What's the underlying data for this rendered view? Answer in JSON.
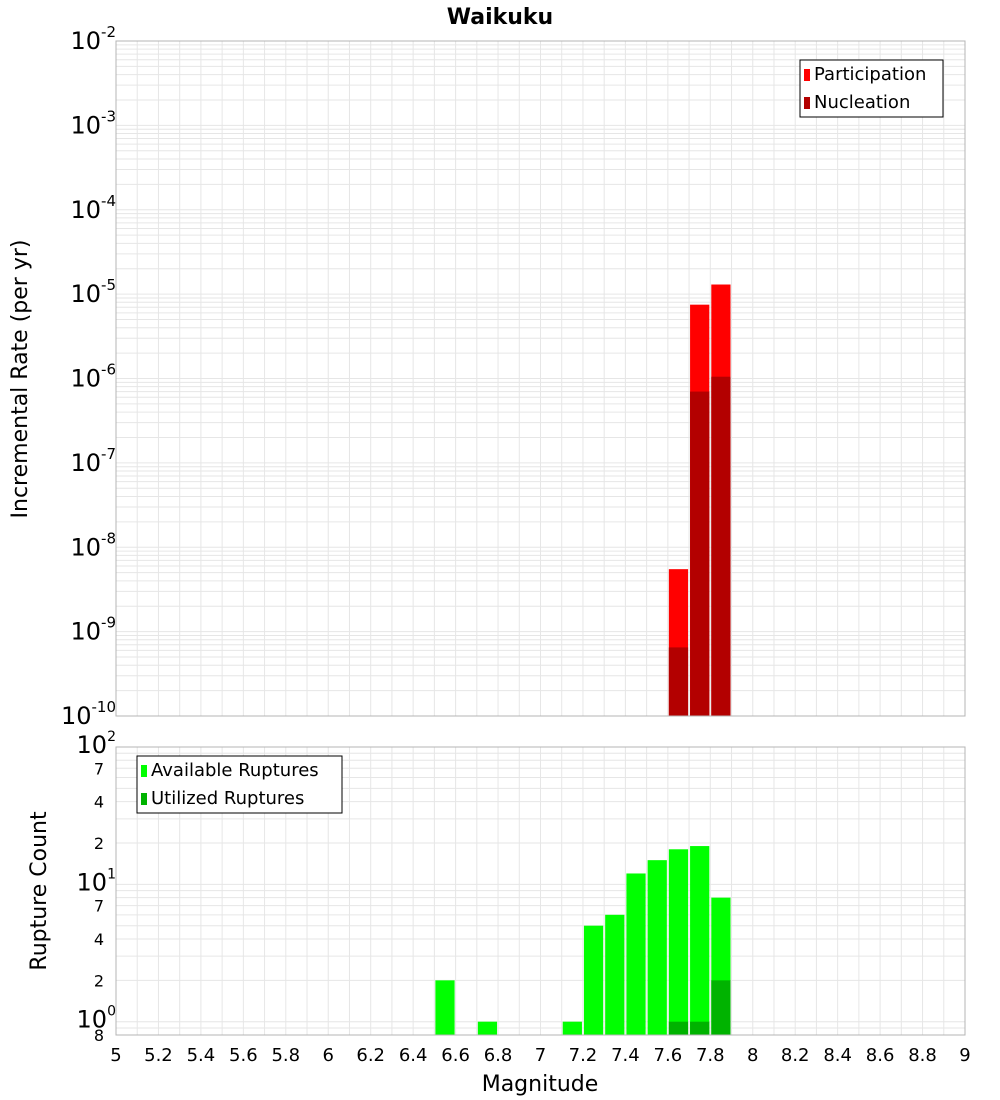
{
  "chart_data": {
    "title": "Waikuku",
    "xlabel": "Magnitude",
    "xlim": [
      5,
      9
    ],
    "x_ticks": [
      "5",
      "5.2",
      "5.4",
      "5.6",
      "5.8",
      "6",
      "6.2",
      "6.4",
      "6.6",
      "6.8",
      "7",
      "7.2",
      "7.4",
      "7.6",
      "7.8",
      "8",
      "8.2",
      "8.4",
      "8.6",
      "8.8",
      "9"
    ],
    "bin_width": 0.1,
    "panels": [
      {
        "type": "bar",
        "scale": "log",
        "ylabel": "Incremental Rate (per yr)",
        "ylim": [
          1e-10,
          0.01
        ],
        "y_ticks": [
          {
            "base": "10",
            "exp": "-2"
          },
          {
            "base": "10",
            "exp": "-3"
          },
          {
            "base": "10",
            "exp": "-4"
          },
          {
            "base": "10",
            "exp": "-5"
          },
          {
            "base": "10",
            "exp": "-6"
          },
          {
            "base": "10",
            "exp": "-7"
          },
          {
            "base": "10",
            "exp": "-8"
          },
          {
            "base": "10",
            "exp": "-9"
          },
          {
            "base": "10",
            "exp": "-10"
          }
        ],
        "legend": {
          "position": "top-right",
          "entries": [
            "Participation",
            "Nucleation"
          ]
        },
        "series": [
          {
            "name": "Participation",
            "color": "#ff0000",
            "points": [
              {
                "x": 7.65,
                "y": 5.5e-09
              },
              {
                "x": 7.75,
                "y": 7.5e-06
              },
              {
                "x": 7.85,
                "y": 1.3e-05
              }
            ]
          },
          {
            "name": "Nucleation",
            "color": "#b30000",
            "points": [
              {
                "x": 7.65,
                "y": 6.5e-10
              },
              {
                "x": 7.75,
                "y": 7e-07
              },
              {
                "x": 7.85,
                "y": 1.05e-06
              }
            ]
          }
        ]
      },
      {
        "type": "bar",
        "scale": "log",
        "ylabel": "Rupture Count",
        "ylim": [
          0.8,
          100
        ],
        "y_ticks": [
          {
            "value": 100,
            "base": "10",
            "exp": "2"
          },
          {
            "value": 70,
            "base": "7",
            "exp": ""
          },
          {
            "value": 40,
            "base": "4",
            "exp": ""
          },
          {
            "value": 20,
            "base": "2",
            "exp": ""
          },
          {
            "value": 10,
            "base": "10",
            "exp": "1"
          },
          {
            "value": 7,
            "base": "7",
            "exp": ""
          },
          {
            "value": 4,
            "base": "4",
            "exp": ""
          },
          {
            "value": 2,
            "base": "2",
            "exp": ""
          },
          {
            "value": 1,
            "base": "10",
            "exp": "0"
          },
          {
            "value": 0.8,
            "base": "8",
            "exp": ""
          }
        ],
        "legend": {
          "position": "top-left",
          "entries": [
            "Available Ruptures",
            "Utilized Ruptures"
          ]
        },
        "series": [
          {
            "name": "Available Ruptures",
            "color": "#00ff00",
            "points": [
              {
                "x": 6.55,
                "y": 2
              },
              {
                "x": 6.75,
                "y": 1
              },
              {
                "x": 7.15,
                "y": 1
              },
              {
                "x": 7.25,
                "y": 5
              },
              {
                "x": 7.35,
                "y": 6
              },
              {
                "x": 7.45,
                "y": 12
              },
              {
                "x": 7.55,
                "y": 15
              },
              {
                "x": 7.65,
                "y": 18
              },
              {
                "x": 7.75,
                "y": 19
              },
              {
                "x": 7.85,
                "y": 8
              }
            ]
          },
          {
            "name": "Utilized Ruptures",
            "color": "#00b300",
            "points": [
              {
                "x": 7.65,
                "y": 1
              },
              {
                "x": 7.75,
                "y": 1
              },
              {
                "x": 7.85,
                "y": 2
              }
            ]
          }
        ]
      }
    ]
  }
}
